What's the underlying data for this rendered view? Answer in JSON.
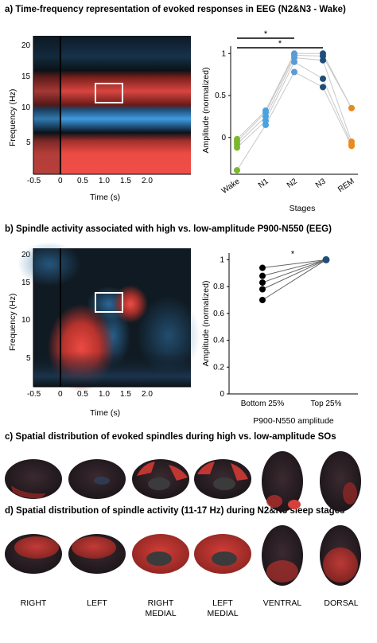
{
  "sections": {
    "a": "a) Time-frequency representation of evoked responses in EEG (N2&N3 - Wake)",
    "b": "b) Spindle activity associated with high vs. low-amplitude P900-N550 (EEG)",
    "c": "c) Spatial distribution of evoked spindles during high vs. low-amplitude SOs",
    "d": "d) Spatial distribution of spindle activity (11-17 Hz) during N2&N3 sleep stages"
  },
  "tf_axes": {
    "ylabel": "Frequency (Hz)",
    "xlabel": "Time (s)",
    "a_yticks": [
      "20",
      "15",
      "10",
      "5"
    ],
    "b_yticks": [
      "20",
      "15",
      "10",
      "5"
    ],
    "xticks": [
      "-0.5",
      "0",
      "0.5",
      "1.0",
      "1.5",
      "2.0"
    ]
  },
  "views": [
    "RIGHT",
    "LEFT",
    "RIGHT\nMEDIAL",
    "LEFT\nMEDIAL",
    "VENTRAL",
    "DORSAL"
  ],
  "colors": {
    "red": "#e8463f",
    "blue": "#3f9be0",
    "dark": "#0b1620",
    "orange": "#e88a1e",
    "green": "#7ab82e",
    "lightblue": "#4aa3e0",
    "navy": "#1f4e79"
  },
  "chart_data": [
    {
      "type": "scatter",
      "xlabel": "Stages",
      "ylabel": "Amplitude (normalized)",
      "categories": [
        "Wake",
        "N1",
        "N2",
        "N3",
        "REM"
      ],
      "ylim": [
        -0.4,
        1.05
      ],
      "yticks": [
        "0",
        "0.5",
        "1"
      ],
      "significance": [
        "*",
        "*"
      ],
      "series": [
        {
          "category": "Wake",
          "values": [
            -0.39,
            -0.12,
            -0.08,
            -0.05,
            -0.02
          ]
        },
        {
          "category": "N1",
          "values": [
            0.15,
            0.2,
            0.25,
            0.3,
            0.32
          ]
        },
        {
          "category": "N2",
          "values": [
            0.78,
            0.9,
            0.95,
            0.98,
            1.0
          ]
        },
        {
          "category": "N3",
          "values": [
            0.6,
            0.7,
            0.92,
            0.97,
            1.0
          ]
        },
        {
          "category": "REM",
          "values": [
            -0.1,
            -0.08,
            -0.05,
            0.35
          ]
        }
      ]
    },
    {
      "type": "scatter",
      "xlabel": "P900-N550 amplitude",
      "ylabel": "Amplitude (normalized)",
      "categories": [
        "Bottom 25%",
        "Top 25%"
      ],
      "ylim": [
        0,
        1.05
      ],
      "yticks": [
        "0",
        "0.2",
        "0.4",
        "0.6",
        "0.8",
        "1"
      ],
      "significance": "*",
      "series": [
        {
          "category": "Bottom 25%",
          "values": [
            0.7,
            0.78,
            0.83,
            0.88,
            0.94
          ]
        },
        {
          "category": "Top 25%",
          "values": [
            1.0
          ]
        }
      ]
    }
  ]
}
